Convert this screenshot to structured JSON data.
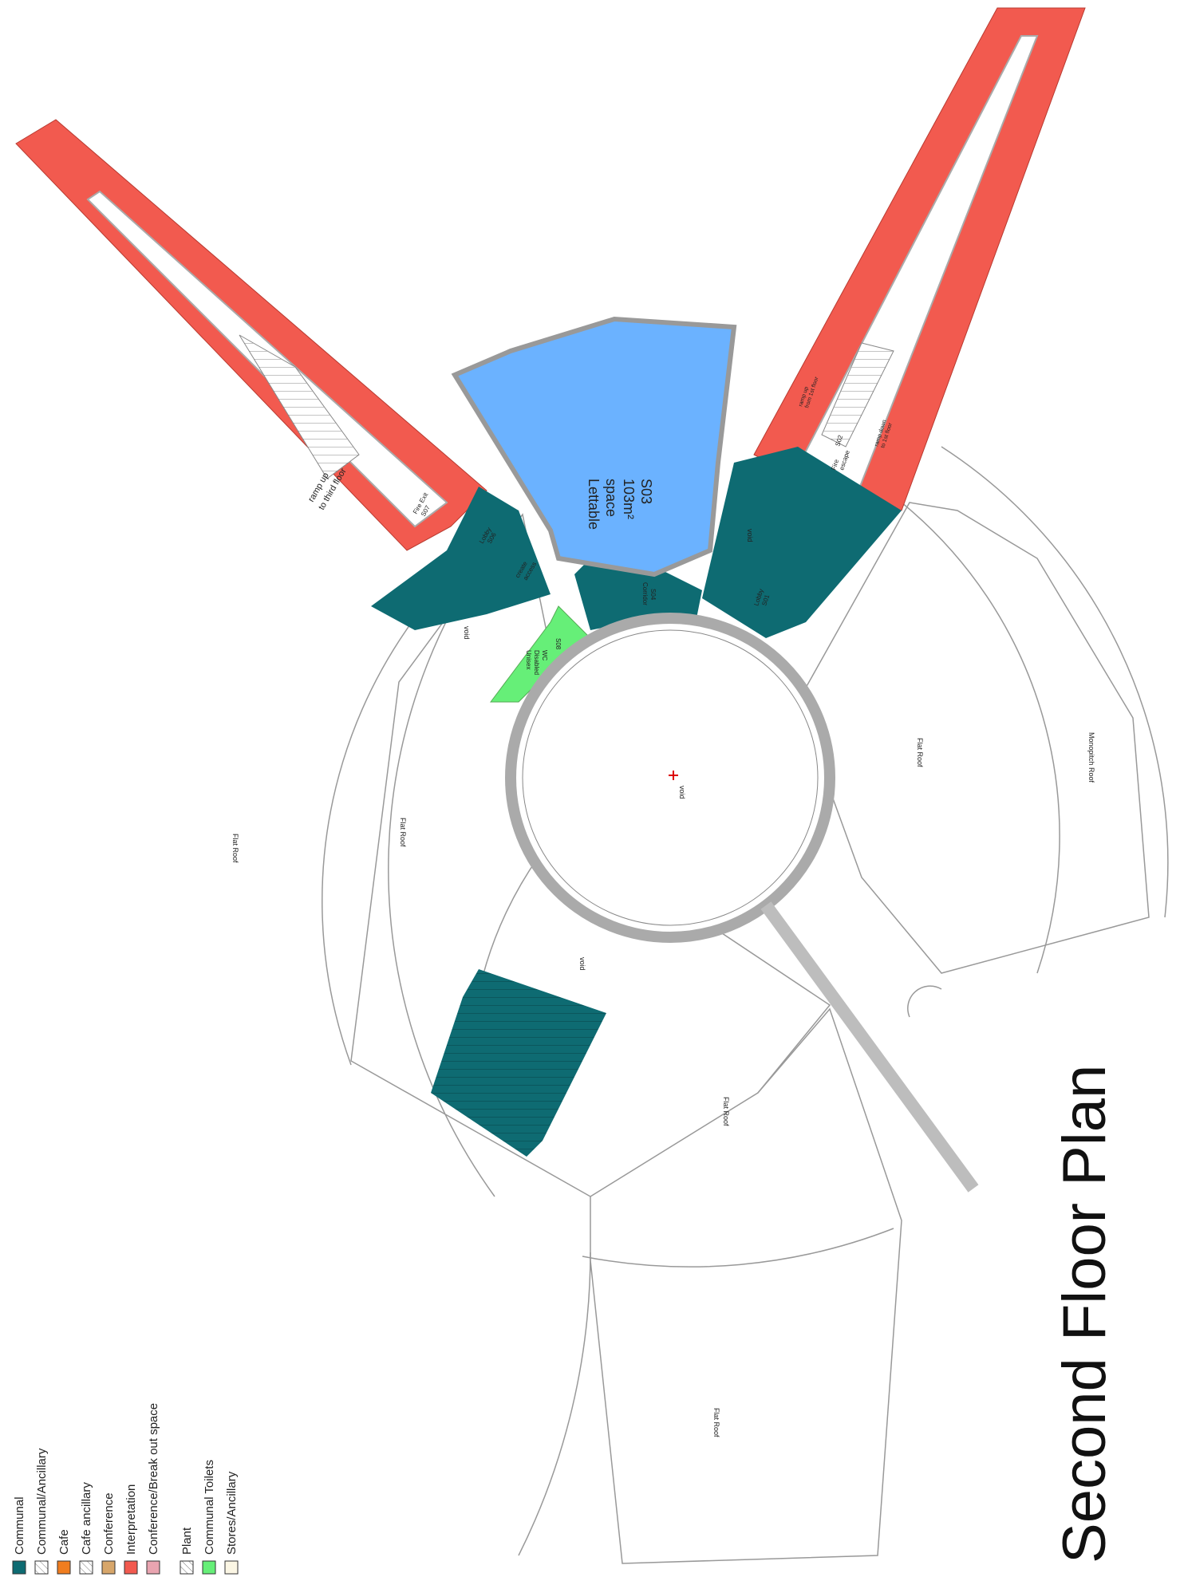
{
  "title": "Second Floor Plan",
  "rooms": {
    "lettable": {
      "line1": "Lettable",
      "line2": "space",
      "line3": "103m²",
      "line4": "S03"
    },
    "void_center": "void",
    "flat_roof_1": "Flat Roof",
    "flat_roof_2": "Flat Roof",
    "flat_roof_3": "Flat Roof",
    "flat_roof_4": "Flat Roof",
    "flat_roof_5": "Flat Roof",
    "monopitch_roof": "Monopitch Roof",
    "void_1": "void",
    "void_2": "void",
    "void_3": "void",
    "toilet": {
      "line1": "Unisex",
      "line2": "Disabled",
      "line3": "WC",
      "line4": "S08"
    },
    "ramp_up": {
      "line1": "ramp up",
      "line2": "to third floor"
    },
    "fire_exit": {
      "line1": "Fire Exit",
      "line2": "S07"
    },
    "lobby_left": {
      "line1": "Lobby",
      "line2": "S06"
    },
    "access": {
      "line1": "create",
      "line2": "access"
    },
    "corridor": {
      "line1": "Corridor",
      "line2": "S04"
    },
    "lobby_right": {
      "line1": "Lobby",
      "line2": "S01"
    },
    "fire_escape": {
      "line1": "Fire",
      "line2": "escape",
      "line3": "S02"
    },
    "ramp_right_1": {
      "line1": "ramp up",
      "line2": "from 1st floor"
    },
    "ramp_right_2": {
      "line1": "ramp down",
      "line2": "to 1st floor"
    }
  },
  "legend": [
    {
      "label": "Communal",
      "color": "#0e6b72",
      "pattern": "solid"
    },
    {
      "label": "Communal/Ancillary",
      "color": "#0e6b72",
      "pattern": "hatch"
    },
    {
      "label": "Cafe",
      "color": "#f07d1f",
      "pattern": "solid"
    },
    {
      "label": "Cafe ancillary",
      "color": "#f07d1f",
      "pattern": "hatch"
    },
    {
      "label": "Conference",
      "color": "#d7a66a",
      "pattern": "solid"
    },
    {
      "label": "Interpretation",
      "color": "#f25a4f",
      "pattern": "solid"
    },
    {
      "label": "Conference/Break out space",
      "color": "#e9a4b0",
      "pattern": "solid"
    },
    {
      "label": "Plant",
      "color": "#d07070",
      "pattern": "hatch"
    },
    {
      "label": "Communal Toilets",
      "color": "#66ef78",
      "pattern": "solid"
    },
    {
      "label": "Stores/Ancillary",
      "color": "#fbf6e4",
      "pattern": "solid"
    }
  ],
  "colors": {
    "communal": "#0e6b72",
    "interpretation": "#f25a4f",
    "lettable": "#6bb2ff",
    "toilets": "#66ef78",
    "wall": "#b3b3b3",
    "outline": "#999999"
  }
}
